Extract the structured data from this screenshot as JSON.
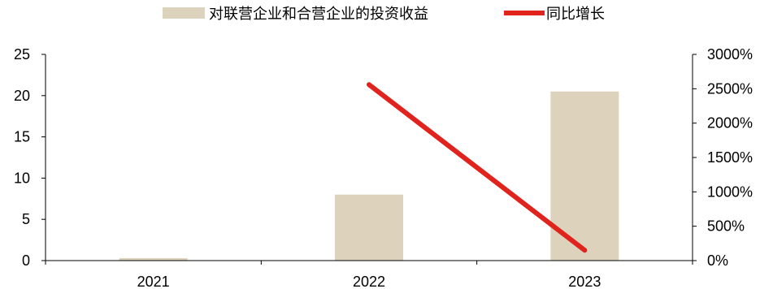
{
  "chart_data": {
    "type": "bar",
    "categories": [
      "2021",
      "2022",
      "2023"
    ],
    "series": [
      {
        "name": "对联营企业和合营企业的投资收益",
        "type": "bar",
        "axis": "left",
        "color": "#ddd3bd",
        "values": [
          0.3,
          8.0,
          20.5
        ]
      },
      {
        "name": "同比增长",
        "type": "line",
        "axis": "right",
        "color": "#e0231c",
        "values": [
          null,
          2560,
          150
        ]
      }
    ],
    "y_left": {
      "min": 0,
      "max": 25,
      "ticks": [
        0,
        5,
        10,
        15,
        20,
        25
      ],
      "tick_labels": [
        "0",
        "5",
        "10",
        "15",
        "20",
        "25"
      ]
    },
    "y_right": {
      "min": 0,
      "max": 3000,
      "ticks": [
        0,
        500,
        1000,
        1500,
        2000,
        2500,
        3000
      ],
      "tick_labels": [
        "0%",
        "500%",
        "1000%",
        "1500%",
        "2000%",
        "2500%",
        "3000%"
      ]
    },
    "legend_position": "top-center",
    "grid": false
  }
}
